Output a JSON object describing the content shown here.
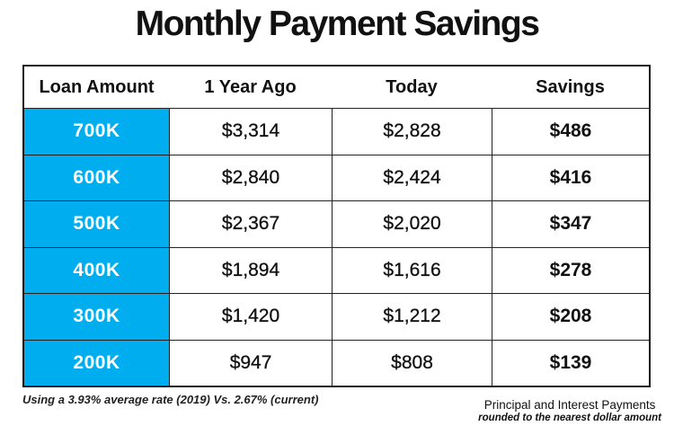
{
  "title": "Monthly Payment Savings",
  "colors": {
    "accent_blue": "#00aeef",
    "border": "#1a1a1a",
    "loan_text": "#ffffff"
  },
  "table": {
    "headers": [
      "Loan Amount",
      "1 Year Ago",
      "Today",
      "Savings"
    ],
    "rows": [
      {
        "loan": "700K",
        "year_ago": "$3,314",
        "today": "$2,828",
        "savings": "$486"
      },
      {
        "loan": "600K",
        "year_ago": "$2,840",
        "today": "$2,424",
        "savings": "$416"
      },
      {
        "loan": "500K",
        "year_ago": "$2,367",
        "today": "$2,020",
        "savings": "$347"
      },
      {
        "loan": "400K",
        "year_ago": "$1,894",
        "today": "$1,616",
        "savings": "$278"
      },
      {
        "loan": "300K",
        "year_ago": "$1,420",
        "today": "$1,212",
        "savings": "$208"
      },
      {
        "loan": "200K",
        "year_ago": "$947",
        "today": "$808",
        "savings": "$139"
      }
    ]
  },
  "footnotes": {
    "rate_note": "Using  a 3.93% average rate (2019) Vs. 2.67% (current)",
    "payments_note_line1": "Principal and Interest Payments",
    "payments_note_line2": "rounded to the nearest dollar amount"
  },
  "chart_data": {
    "type": "table",
    "title": "Monthly Payment Savings",
    "columns": [
      "Loan Amount",
      "1 Year Ago",
      "Today",
      "Savings"
    ],
    "rows": [
      [
        "700K",
        3314,
        2828,
        486
      ],
      [
        "600K",
        2840,
        2424,
        416
      ],
      [
        "500K",
        2367,
        2020,
        347
      ],
      [
        "400K",
        1894,
        1616,
        278
      ],
      [
        "300K",
        1420,
        1212,
        208
      ],
      [
        "200K",
        947,
        808,
        139
      ]
    ],
    "notes": [
      "Using  a 3.93% average rate (2019) Vs. 2.67% (current)",
      "Principal and Interest Payments rounded to the nearest dollar amount"
    ],
    "layout_hints": {
      "loan_amount_column_bg": "#00aeef",
      "savings_column_bold": true,
      "header_row_no_vertical_dividers": true
    }
  }
}
